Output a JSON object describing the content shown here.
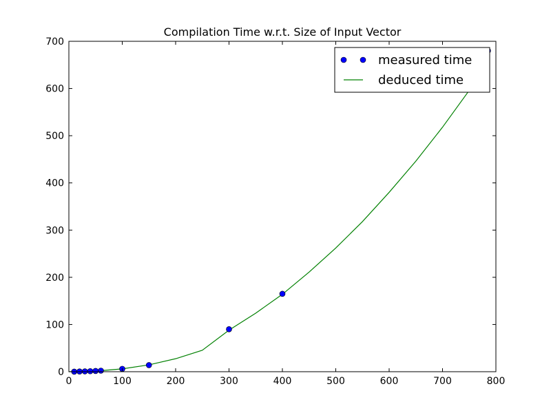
{
  "chart_data": {
    "type": "scatter",
    "title": "Compilation Time w.r.t. Size of Input Vector",
    "xlabel": "",
    "ylabel": "",
    "xlim": [
      0,
      800
    ],
    "ylim": [
      0,
      700
    ],
    "x_ticks": [
      0,
      100,
      200,
      300,
      400,
      500,
      600,
      700,
      800
    ],
    "y_ticks": [
      0,
      100,
      200,
      300,
      400,
      500,
      600,
      700
    ],
    "grid": false,
    "legend_position": "top-right",
    "series": [
      {
        "name": "measured time",
        "kind": "markers",
        "color": "#0000ff",
        "x": [
          10,
          20,
          30,
          40,
          50,
          60,
          100,
          150,
          300,
          400,
          785
        ],
        "y": [
          0.1,
          0.4,
          0.7,
          1.1,
          1.6,
          2.2,
          6,
          14,
          90,
          165,
          680
        ]
      },
      {
        "name": "deduced time",
        "kind": "line",
        "color": "#008000",
        "x": [
          0,
          50,
          100,
          150,
          200,
          250,
          300,
          350,
          400,
          450,
          500,
          550,
          600,
          650,
          700,
          750,
          785
        ],
        "y": [
          0,
          1.3,
          6,
          14.5,
          27.5,
          45.5,
          88,
          124,
          164,
          211,
          262,
          318,
          380,
          446,
          518,
          596,
          680
        ]
      }
    ]
  }
}
